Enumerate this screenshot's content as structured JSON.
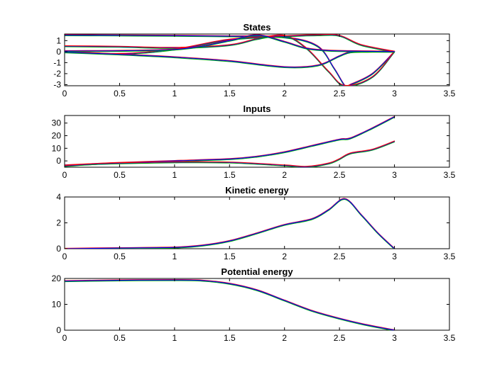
{
  "colors": {
    "green": "#00aa00",
    "blue": "#0000ff",
    "red": "#ff0000",
    "black": "#1a1a1a"
  },
  "chart_data": [
    {
      "type": "line",
      "title": "States",
      "xlim": [
        0,
        3.5
      ],
      "ylim": [
        -3.1,
        1.6
      ],
      "xticks": [
        0,
        0.5,
        1,
        1.5,
        2,
        2.5,
        3,
        3.5
      ],
      "xtick_labels": [
        "0",
        "0.5",
        "1",
        "1.5",
        "2",
        "2.5",
        "3",
        "3.5"
      ],
      "yticks": [
        -3,
        -2,
        -1,
        0,
        1
      ],
      "ytick_labels": [
        "-3",
        "-2",
        "-1",
        "0",
        "1"
      ],
      "grid": false,
      "curves": [
        {
          "color": "blue",
          "x": [
            0,
            0.5,
            1,
            1.5,
            2,
            2.3,
            2.45,
            2.55,
            2.6,
            2.8,
            3.0
          ],
          "y": [
            1.5,
            1.48,
            1.45,
            1.4,
            1.3,
            0.5,
            -1.5,
            -3.1,
            -3.0,
            -2.0,
            0
          ]
        },
        {
          "color": "red",
          "x": [
            0,
            0.5,
            1,
            1.5,
            1.75,
            2.0,
            2.2,
            2.4,
            2.55,
            2.8,
            3.0
          ],
          "y": [
            0.5,
            0.45,
            0.35,
            0.6,
            1.15,
            1.45,
            0.3,
            -1.8,
            -3.1,
            -2.3,
            0
          ]
        },
        {
          "color": "red",
          "x": [
            0,
            0.5,
            1,
            1.5,
            2,
            2.3,
            2.5,
            2.7,
            3.0
          ],
          "y": [
            0.02,
            -0.2,
            0.2,
            1.1,
            1.4,
            1.5,
            1.45,
            0.6,
            0
          ]
        },
        {
          "color": "blue",
          "x": [
            0,
            0.5,
            1,
            1.5,
            2,
            2.3,
            2.5,
            2.6,
            2.8,
            3.0
          ],
          "y": [
            -0.05,
            -0.25,
            -0.5,
            -0.85,
            -1.4,
            -1.25,
            -0.4,
            -0.05,
            0,
            0
          ]
        },
        {
          "color": "blue",
          "x": [
            0,
            1,
            1.5,
            1.75,
            2,
            2.2,
            2.4,
            2.6,
            3.0
          ],
          "y": [
            0.05,
            0.2,
            1.0,
            1.5,
            0.9,
            0.3,
            0.1,
            0.05,
            0
          ]
        }
      ]
    },
    {
      "type": "line",
      "title": "Inputs",
      "xlim": [
        0,
        3.5
      ],
      "ylim": [
        -5,
        36
      ],
      "xticks": [
        0,
        0.5,
        1,
        1.5,
        2,
        2.5,
        3,
        3.5
      ],
      "xtick_labels": [
        "0",
        "0.5",
        "1",
        "1.5",
        "2",
        "2.5",
        "3",
        "3.5"
      ],
      "yticks": [
        0,
        10,
        20,
        30
      ],
      "ytick_labels": [
        "0",
        "10",
        "20",
        "30"
      ],
      "grid": false,
      "curves": [
        {
          "color": "blue",
          "x": [
            0,
            0.25,
            0.5,
            1,
            1.5,
            1.75,
            2,
            2.25,
            2.5,
            2.6,
            2.8,
            3.0
          ],
          "y": [
            -3.5,
            -2.5,
            -1.5,
            0,
            1.5,
            3.5,
            7,
            12,
            17,
            18,
            26,
            35
          ]
        },
        {
          "color": "red",
          "x": [
            0,
            0.25,
            0.5,
            1,
            1.5,
            2,
            2.2,
            2.4,
            2.5,
            2.6,
            2.8,
            3.0
          ],
          "y": [
            -4,
            -2.5,
            -1.8,
            -1.0,
            -1.2,
            -3.5,
            -4.6,
            -2.0,
            1.5,
            6,
            9,
            15.5
          ]
        }
      ]
    },
    {
      "type": "line",
      "title": "Kinetic energy",
      "xlim": [
        0,
        3.5
      ],
      "ylim": [
        0,
        4
      ],
      "xticks": [
        0,
        0.5,
        1,
        1.5,
        2,
        2.5,
        3,
        3.5
      ],
      "xtick_labels": [
        "0",
        "0.5",
        "1",
        "1.5",
        "2",
        "2.5",
        "3",
        "3.5"
      ],
      "yticks": [
        0,
        2,
        4
      ],
      "ytick_labels": [
        "0",
        "2",
        "4"
      ],
      "grid": false,
      "curves": [
        {
          "color": "blue",
          "x": [
            0,
            0.5,
            1,
            1.25,
            1.5,
            1.75,
            2,
            2.25,
            2.4,
            2.55,
            2.7,
            2.85,
            3.0
          ],
          "y": [
            0,
            0.05,
            0.1,
            0.25,
            0.6,
            1.2,
            1.85,
            2.3,
            3.0,
            3.85,
            2.6,
            1.2,
            0
          ]
        }
      ]
    },
    {
      "type": "line",
      "title": "Potential energy",
      "xlim": [
        0,
        3.5
      ],
      "ylim": [
        0,
        20
      ],
      "xticks": [
        0,
        0.5,
        1,
        1.5,
        2,
        2.5,
        3,
        3.5
      ],
      "xtick_labels": [
        "0",
        "0.5",
        "1",
        "1.5",
        "2",
        "2.5",
        "3",
        "3.5"
      ],
      "yticks": [
        0,
        10,
        20
      ],
      "ytick_labels": [
        "0",
        "10",
        "20"
      ],
      "grid": false,
      "curves": [
        {
          "color": "blue",
          "x": [
            0,
            0.5,
            1,
            1.25,
            1.5,
            1.75,
            2,
            2.25,
            2.5,
            2.75,
            3.0
          ],
          "y": [
            19,
            19.3,
            19.4,
            19.2,
            18.0,
            15.5,
            11.5,
            7.5,
            4.5,
            2.0,
            0
          ]
        }
      ]
    }
  ]
}
